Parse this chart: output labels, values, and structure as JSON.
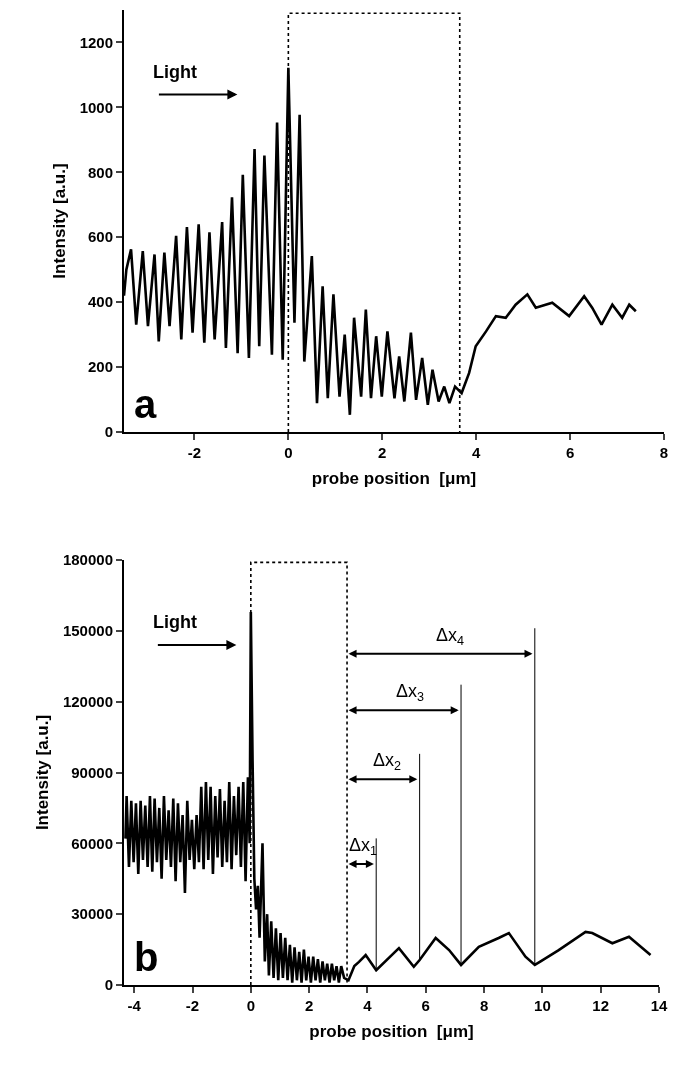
{
  "chart_data": [
    {
      "type": "line",
      "xlabel": "probe position  [μm]",
      "ylabel": "Intensity [a.u.]",
      "annotations": [
        "Light",
        "a"
      ],
      "xlim": [
        -3.5,
        8
      ],
      "xticks": [
        -2,
        0,
        2,
        4,
        6,
        8
      ],
      "ylim": [
        0,
        1300
      ],
      "yticks": [
        0,
        200,
        400,
        600,
        800,
        1000,
        1200
      ],
      "series": [
        {
          "color": "#000000",
          "line_style": "dotted",
          "x": [
            0,
            0,
            3.65,
            3.65
          ],
          "values": [
            0,
            1290,
            1290,
            0
          ]
        },
        {
          "color": "#000000",
          "x": [
            -3.5,
            -3.45,
            -3.35,
            -3.24,
            -3.1,
            -2.99,
            -2.85,
            -2.76,
            -2.64,
            -2.53,
            -2.39,
            -2.28,
            -2.16,
            -2.04,
            -1.91,
            -1.79,
            -1.68,
            -1.57,
            -1.41,
            -1.33,
            -1.2,
            -1.08,
            -0.97,
            -0.84,
            -0.72,
            -0.62,
            -0.51,
            -0.35,
            -0.24,
            -0.12,
            0,
            0.13,
            0.24,
            0.34,
            0.5,
            0.61,
            0.73,
            0.84,
            0.96,
            1.09,
            1.2,
            1.31,
            1.4,
            1.55,
            1.65,
            1.76,
            1.87,
            1.99,
            2.11,
            2.26,
            2.36,
            2.47,
            2.61,
            2.72,
            2.85,
            2.97,
            3.07,
            3.2,
            3.32,
            3.43,
            3.55,
            3.69,
            3.85,
            3.99,
            4.21,
            4.42,
            4.63,
            4.84,
            5.09,
            5.27,
            5.62,
            5.98,
            6.3,
            6.47,
            6.67,
            6.9,
            7.11,
            7.26,
            7.4
          ],
          "values": [
            420,
            500,
            563,
            331,
            557,
            326,
            547,
            279,
            553,
            326,
            604,
            285,
            631,
            306,
            640,
            275,
            615,
            285,
            647,
            259,
            723,
            243,
            792,
            228,
            872,
            264,
            852,
            238,
            953,
            223,
            1122,
            337,
            977,
            217,
            542,
            89,
            449,
            104,
            424,
            109,
            300,
            53,
            352,
            109,
            377,
            104,
            295,
            109,
            310,
            104,
            233,
            94,
            306,
            99,
            228,
            84,
            192,
            94,
            140,
            89,
            140,
            120,
            182,
            264,
            310,
            357,
            352,
            392,
            424,
            383,
            398,
            357,
            418,
            383,
            331,
            392,
            352,
            392,
            372
          ]
        }
      ]
    },
    {
      "type": "line",
      "xlabel": "probe position  [μm]",
      "ylabel": "Intensity [a.u.]",
      "annotations": [
        "Light",
        "b",
        "Δx$_{1}$",
        "Δx$_{2}$",
        "Δx$_{3}$",
        "Δx$_{4}$"
      ],
      "xlim": [
        -4.35,
        14
      ],
      "xticks": [
        -4,
        -2,
        0,
        2,
        4,
        6,
        8,
        10,
        12,
        14
      ],
      "ylim": [
        0,
        180000
      ],
      "yticks": [
        0,
        30000,
        60000,
        90000,
        120000,
        150000,
        180000
      ],
      "series": [
        {
          "color": "#000000",
          "line_style": "dotted",
          "x": [
            0,
            0,
            3.3,
            3.3
          ],
          "values": [
            0,
            179000,
            179000,
            0
          ]
        },
        {
          "color": "#000000",
          "x": [
            -4.3,
            -4.26,
            -4.18,
            -4.1,
            -4.02,
            -3.94,
            -3.86,
            -3.78,
            -3.7,
            -3.62,
            -3.54,
            -3.46,
            -3.38,
            -3.3,
            -3.22,
            -3.14,
            -3.06,
            -2.98,
            -2.9,
            -2.82,
            -2.74,
            -2.66,
            -2.58,
            -2.5,
            -2.42,
            -2.34,
            -2.26,
            -2.18,
            -2.1,
            -2.02,
            -1.94,
            -1.86,
            -1.78,
            -1.7,
            -1.62,
            -1.54,
            -1.46,
            -1.38,
            -1.3,
            -1.22,
            -1.14,
            -1.06,
            -0.98,
            -0.9,
            -0.82,
            -0.74,
            -0.66,
            -0.58,
            -0.5,
            -0.42,
            -0.34,
            -0.26,
            -0.18,
            -0.1,
            -0.04,
            0,
            0.06,
            0.12,
            0.18,
            0.24,
            0.3,
            0.4,
            0.48,
            0.56,
            0.62,
            0.7,
            0.78,
            0.86,
            0.94,
            1.02,
            1.1,
            1.18,
            1.26,
            1.34,
            1.42,
            1.5,
            1.58,
            1.66,
            1.74,
            1.82,
            1.9,
            1.98,
            2.06,
            2.14,
            2.22,
            2.3,
            2.38,
            2.46,
            2.54,
            2.62,
            2.7,
            2.78,
            2.86,
            2.94,
            3.02,
            3.1,
            3.2,
            3.35,
            3.55,
            3.71,
            3.94,
            4.3,
            5.08,
            5.59,
            5.79,
            6.34,
            6.8,
            7.21,
            7.82,
            8.5,
            8.85,
            9.42,
            9.74,
            9.94,
            10.56,
            11.48,
            11.71,
            12.4,
            12.97,
            13.71
          ],
          "values": [
            62000,
            80000,
            50000,
            78000,
            52000,
            77000,
            47000,
            78000,
            53000,
            76000,
            50000,
            80000,
            48000,
            79000,
            52000,
            75000,
            45000,
            80000,
            53000,
            74000,
            50000,
            79000,
            44000,
            77000,
            52000,
            72000,
            39000,
            78000,
            53000,
            70000,
            49000,
            72000,
            52000,
            84000,
            49000,
            86000,
            53000,
            84000,
            47000,
            80000,
            54000,
            83000,
            50000,
            78000,
            52000,
            86000,
            49000,
            80000,
            55000,
            84000,
            50000,
            86000,
            44000,
            88000,
            60000,
            158000,
            95000,
            45000,
            32000,
            42000,
            20000,
            60000,
            10000,
            30000,
            4000,
            27000,
            3000,
            24000,
            2000,
            22000,
            3000,
            20000,
            2000,
            17000,
            1000,
            16000,
            2000,
            14000,
            1000,
            15000,
            2000,
            12000,
            1000,
            12000,
            2000,
            11000,
            1000,
            10000,
            2000,
            9000,
            1000,
            9000,
            2000,
            8000,
            1000,
            8000,
            3000,
            2000,
            8000,
            9800,
            12700,
            6300,
            15600,
            7700,
            10600,
            19900,
            14800,
            8500,
            16200,
            19900,
            22000,
            12000,
            8500,
            10000,
            14800,
            22500,
            22000,
            17700,
            20400,
            12700
          ]
        },
        {
          "color": "#000000",
          "x": [
            4.3,
            4.3
          ],
          "values": [
            6300,
            62100
          ]
        },
        {
          "color": "#000000",
          "x": [
            5.79,
            5.79
          ],
          "values": [
            10600,
            97900
          ]
        },
        {
          "color": "#000000",
          "x": [
            7.21,
            7.21
          ],
          "values": [
            8500,
            127200
          ]
        },
        {
          "color": "#000000",
          "x": [
            9.74,
            9.74
          ],
          "values": [
            8500,
            151100
          ]
        }
      ]
    }
  ]
}
